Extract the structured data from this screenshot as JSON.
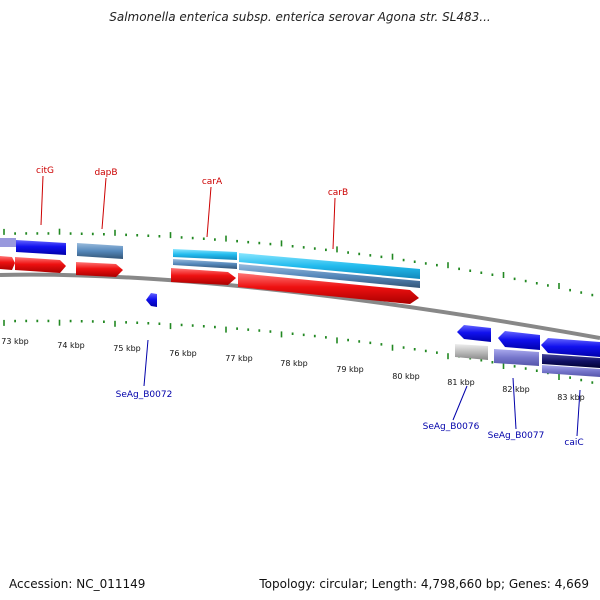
{
  "title": "Salmonella enterica subsp. enterica serovar Agona str. SL483...",
  "accession": "Accession: NC_011149",
  "topology": "Topology: circular; Length: 4,798,660 bp; Genes: 4,669",
  "colors": {
    "red_gene": "#ee1111",
    "blue_gene": "#1111ee",
    "light_blue_gene": "#22bbee",
    "steel_blue_gene": "#5588bb",
    "lavender_gene": "#7777cc",
    "gray_gene": "#bbbbbb",
    "navy_gene": "#111166",
    "gene_label": "#cc0000",
    "locus_label": "#0000aa",
    "tick": "#228822",
    "backbone": "#888888"
  },
  "kbp_labels": [
    "73 kbp",
    "74 kbp",
    "75 kbp",
    "76 kbp",
    "77 kbp",
    "78 kbp",
    "79 kbp",
    "80 kbp",
    "81 kbp",
    "82 kbp",
    "83 kbp"
  ],
  "gene_labels": [
    "citG",
    "dapB",
    "carA",
    "carB",
    "caiC"
  ],
  "locus_labels": [
    "SeAg_B0072",
    "SeAg_B0076",
    "SeAg_B0077"
  ]
}
